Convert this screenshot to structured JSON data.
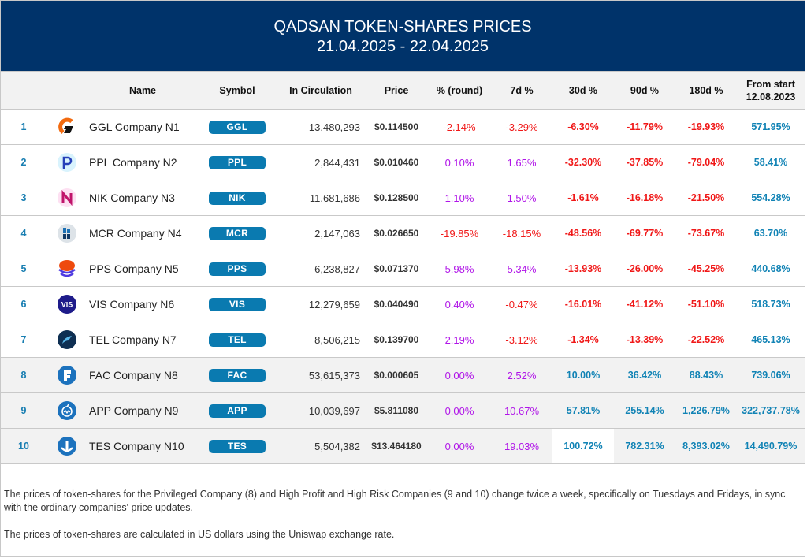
{
  "banner": {
    "title": "QADSAN TOKEN-SHARES PRICES",
    "date_range": "21.04.2025 - 22.04.2025"
  },
  "colors": {
    "banner_bg": "#00336a",
    "badge_bg": "#0a7ab0",
    "negative": "#f01818",
    "positive_short": "#b015e8",
    "positive_long": "#1183b5"
  },
  "table": {
    "headers": {
      "rank": "",
      "logo": "",
      "name": "Name",
      "symbol": "Symbol",
      "circulation": "In Circulation",
      "price": "Price",
      "round": "% (round)",
      "d7": "7d %",
      "d30": "30d %",
      "d90": "90d %",
      "d180": "180d %",
      "from_start_line1": "From start",
      "from_start_line2": "12.08.2023"
    },
    "rows": [
      {
        "rank": "1",
        "icon": "ggl-logo-icon",
        "name": "GGL Company N1",
        "symbol": "GGL",
        "circulation": "13,480,293",
        "price": "$0.114500",
        "round": "-2.14%",
        "d7": "-3.29%",
        "d30": "-6.30%",
        "d90": "-11.79%",
        "d180": "-19.93%",
        "from_start": "571.95%"
      },
      {
        "rank": "2",
        "icon": "ppl-logo-icon",
        "name": "PPL Company N2",
        "symbol": "PPL",
        "circulation": "2,844,431",
        "price": "$0.010460",
        "round": "0.10%",
        "d7": "1.65%",
        "d30": "-32.30%",
        "d90": "-37.85%",
        "d180": "-79.04%",
        "from_start": "58.41%"
      },
      {
        "rank": "3",
        "icon": "nik-logo-icon",
        "name": "NIK Company N3",
        "symbol": "NIK",
        "circulation": "11,681,686",
        "price": "$0.128500",
        "round": "1.10%",
        "d7": "1.50%",
        "d30": "-1.61%",
        "d90": "-16.18%",
        "d180": "-21.50%",
        "from_start": "554.28%"
      },
      {
        "rank": "4",
        "icon": "mcr-logo-icon",
        "name": "MCR Company N4",
        "symbol": "MCR",
        "circulation": "2,147,063",
        "price": "$0.026650",
        "round": "-19.85%",
        "d7": "-18.15%",
        "d30": "-48.56%",
        "d90": "-69.77%",
        "d180": "-73.67%",
        "from_start": "63.70%"
      },
      {
        "rank": "5",
        "icon": "pps-logo-icon",
        "name": "PPS Company N5",
        "symbol": "PPS",
        "circulation": "6,238,827",
        "price": "$0.071370",
        "round": "5.98%",
        "d7": "5.34%",
        "d30": "-13.93%",
        "d90": "-26.00%",
        "d180": "-45.25%",
        "from_start": "440.68%"
      },
      {
        "rank": "6",
        "icon": "vis-logo-icon",
        "name": "VIS Company N6",
        "symbol": "VIS",
        "circulation": "12,279,659",
        "price": "$0.040490",
        "round": "0.40%",
        "d7": "-0.47%",
        "d30": "-16.01%",
        "d90": "-41.12%",
        "d180": "-51.10%",
        "from_start": "518.73%"
      },
      {
        "rank": "7",
        "icon": "tel-logo-icon",
        "name": "TEL Company N7",
        "symbol": "TEL",
        "circulation": "8,506,215",
        "price": "$0.139700",
        "round": "2.19%",
        "d7": "-3.12%",
        "d30": "-1.34%",
        "d90": "-13.39%",
        "d180": "-22.52%",
        "from_start": "465.13%"
      },
      {
        "rank": "8",
        "icon": "fac-logo-icon",
        "name": "FAC Company N8",
        "symbol": "FAC",
        "circulation": "53,615,373",
        "price": "$0.000605",
        "round": "0.00%",
        "d7": "2.52%",
        "d30": "10.00%",
        "d90": "36.42%",
        "d180": "88.43%",
        "from_start": "739.06%"
      },
      {
        "rank": "9",
        "icon": "app-logo-icon",
        "name": "APP Company N9",
        "symbol": "APP",
        "circulation": "10,039,697",
        "price": "$5.811080",
        "round": "0.00%",
        "d7": "10.67%",
        "d30": "57.81%",
        "d90": "255.14%",
        "d180": "1,226.79%",
        "from_start": "322,737.78%"
      },
      {
        "rank": "10",
        "icon": "tes-logo-icon",
        "name": "TES Company N10",
        "symbol": "TES",
        "circulation": "5,504,382",
        "price": "$13.464180",
        "round": "0.00%",
        "d7": "19.03%",
        "d30": "100.72%",
        "d90": "782.31%",
        "d180": "8,393.02%",
        "from_start": "14,490.79%"
      }
    ]
  },
  "notes": [
    "The prices of token-shares for the Privileged Company (8) and High Profit and High Risk Companies (9 and 10) change twice a week, specifically on Tuesdays and Fridays, in sync with the ordinary companies' price updates.",
    "The prices of token-shares are calculated in US dollars using the Uniswap exchange rate."
  ]
}
